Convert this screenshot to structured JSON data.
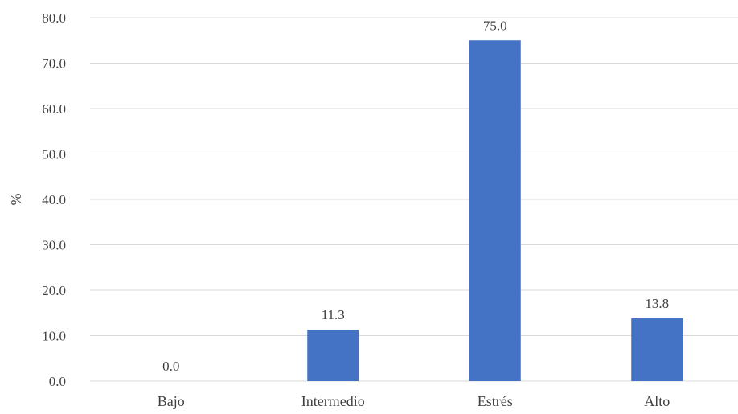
{
  "chart_data": {
    "type": "bar",
    "title": "",
    "xlabel": "",
    "ylabel": "%",
    "categories": [
      "Bajo",
      "Intermedio",
      "Estrés",
      "Alto"
    ],
    "values": [
      0.0,
      11.3,
      75.0,
      13.8
    ],
    "data_labels": [
      "0.0",
      "11.3",
      "75.0",
      "13.8"
    ],
    "ylim": [
      0,
      80
    ],
    "y_ticks": [
      "0.0",
      "10.0",
      "20.0",
      "30.0",
      "40.0",
      "50.0",
      "60.0",
      "70.0",
      "80.0"
    ],
    "grid": true,
    "legend": "none",
    "colors": {
      "bar": "#4472C4",
      "grid": "#D9D9D9",
      "text": "#404040"
    }
  }
}
